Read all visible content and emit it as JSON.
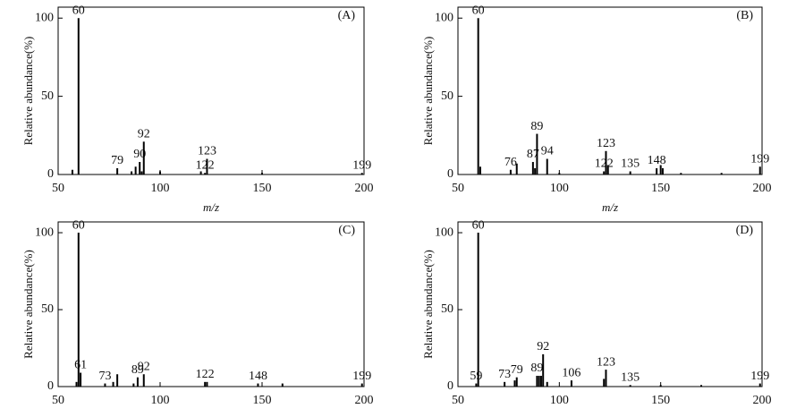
{
  "chart_data": [
    {
      "type": "bar",
      "panel_label": "(A)",
      "ylabel": "Relative abundance(%)",
      "xlabel": "m/z",
      "color": "#000000",
      "xlim": [
        50,
        200
      ],
      "ylim": [
        0,
        107
      ],
      "xticks": [
        50,
        100,
        150,
        200
      ],
      "yticks": [
        0,
        50,
        100
      ],
      "peaks": {
        "x": [
          60,
          79,
          90,
          92,
          122,
          123,
          199
        ],
        "values": [
          100,
          4,
          8,
          21,
          1,
          10,
          1
        ]
      },
      "minor": {
        "x": [
          57,
          86,
          88,
          91,
          100,
          120,
          150
        ],
        "values": [
          3,
          2,
          5,
          2,
          2,
          2,
          1
        ]
      }
    },
    {
      "type": "bar",
      "panel_label": "(B)",
      "ylabel": "Relative abundance(%)",
      "xlabel": "m/z",
      "color": "#000000",
      "xlim": [
        50,
        200
      ],
      "ylim": [
        0,
        107
      ],
      "xticks": [
        50,
        100,
        150,
        200
      ],
      "yticks": [
        0,
        50,
        100
      ],
      "peaks": {
        "x": [
          60,
          76,
          87,
          89,
          94,
          122,
          123,
          135,
          148,
          199
        ],
        "values": [
          100,
          3,
          8,
          26,
          10,
          2,
          15,
          2,
          4,
          5
        ]
      },
      "minor": {
        "x": [
          61,
          79,
          88,
          100,
          124,
          150,
          151,
          160,
          180
        ],
        "values": [
          5,
          7,
          4,
          1,
          6,
          6,
          4,
          1,
          1
        ]
      }
    },
    {
      "type": "bar",
      "panel_label": "(C)",
      "ylabel": "Relative abundance(%)",
      "color": "#000000",
      "xlim": [
        50,
        200
      ],
      "ylim": [
        0,
        107
      ],
      "xticks": [
        50,
        100,
        150,
        200
      ],
      "yticks": [
        0,
        50,
        100
      ],
      "peaks": {
        "x": [
          60,
          61,
          73,
          89,
          92,
          122,
          148,
          199
        ],
        "values": [
          100,
          9,
          2,
          6,
          8,
          3,
          2,
          2
        ]
      },
      "minor": {
        "x": [
          59,
          77,
          79,
          87,
          123,
          160
        ],
        "values": [
          3,
          3,
          8,
          2,
          3,
          2
        ]
      }
    },
    {
      "type": "bar",
      "panel_label": "(D)",
      "ylabel": "Relative abundance(%)",
      "color": "#000000",
      "xlim": [
        50,
        200
      ],
      "ylim": [
        0,
        107
      ],
      "xticks": [
        50,
        100,
        150,
        200
      ],
      "yticks": [
        0,
        50,
        100
      ],
      "peaks": {
        "x": [
          59,
          60,
          73,
          79,
          89,
          92,
          106,
          123,
          135,
          199
        ],
        "values": [
          2,
          100,
          3,
          6,
          7,
          21,
          4,
          11,
          1,
          2
        ]
      },
      "minor": {
        "x": [
          78,
          90,
          91,
          94,
          122,
          150,
          170
        ],
        "values": [
          4,
          7,
          7,
          3,
          5,
          1,
          1
        ]
      }
    }
  ]
}
